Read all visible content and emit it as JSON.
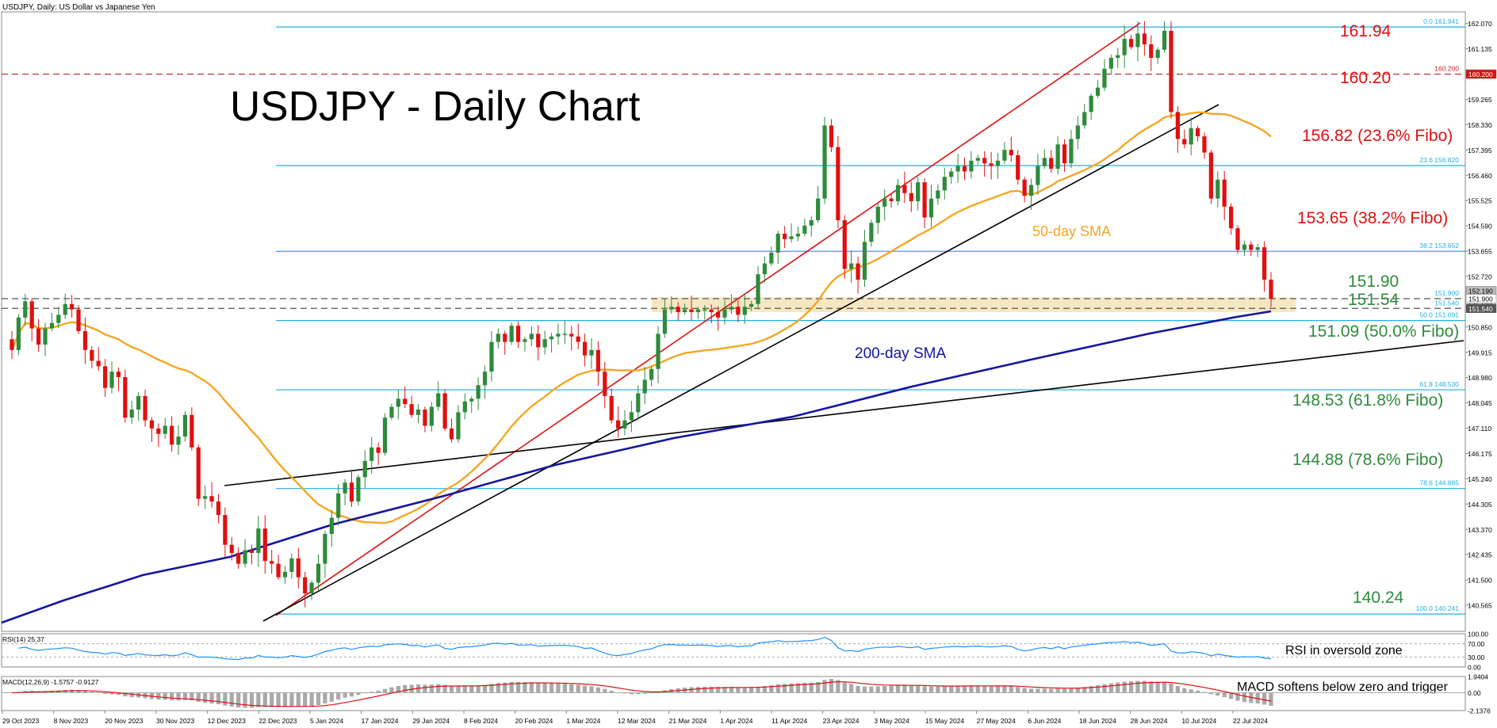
{
  "chart_data": {
    "type": "candlestick",
    "symbol_header": "USDJPY, Daily:  US Dollar vs Japanese Yen",
    "title": "USDJPY - Daily Chart",
    "price_axis": {
      "ylim": [
        139.6,
        162.5
      ],
      "ticks": [
        "162.070",
        "161.135",
        "160.200",
        "159.265",
        "158.330",
        "157.395",
        "156.460",
        "155.525",
        "154.590",
        "153.655",
        "152.720",
        "151.785",
        "150.850",
        "149.915",
        "148.980",
        "148.045",
        "147.110",
        "146.175",
        "145.240",
        "144.305",
        "143.370",
        "142.435",
        "141.500",
        "140.565"
      ]
    },
    "date_labels": [
      "29 Oct 2023",
      "8 Nov 2023",
      "20 Nov 2023",
      "30 Nov 2023",
      "12 Dec 2023",
      "22 Dec 2023",
      "5 Jan 2024",
      "17 Jan 2024",
      "29 Jan 2024",
      "8 Feb 2024",
      "20 Feb 2024",
      "1 Mar 2024",
      "12 Mar 2024",
      "21 Mar 2024",
      "1 Apr 2024",
      "11 Apr 2024",
      "23 Apr 2024",
      "3 May 2024",
      "15 May 2024",
      "27 May 2024",
      "6 Jun 2024",
      "18 Jun 2024",
      "28 Jun 2024",
      "10 Jul 2024",
      "22 Jul 2024"
    ],
    "candles_close": [
      150.0,
      151.2,
      151.8,
      150.8,
      150.2,
      150.8,
      151.0,
      151.3,
      151.7,
      151.5,
      150.7,
      150.0,
      149.6,
      149.4,
      148.6,
      149.2,
      149.0,
      147.5,
      147.8,
      148.3,
      147.4,
      147.1,
      146.9,
      147.2,
      146.5,
      146.8,
      147.6,
      146.4,
      144.5,
      144.6,
      144.4,
      143.9,
      142.8,
      142.5,
      142.1,
      142.6,
      142.5,
      143.4,
      142.2,
      142.1,
      141.6,
      141.8,
      142.3,
      141.6,
      141.0,
      141.4,
      142.1,
      143.2,
      143.8,
      144.7,
      145.1,
      144.4,
      145.3,
      145.9,
      146.4,
      146.2,
      147.5,
      147.9,
      148.2,
      148.0,
      147.6,
      147.8,
      147.2,
      147.9,
      148.4,
      147.1,
      146.7,
      147.7,
      148.1,
      148.2,
      148.7,
      149.2,
      150.3,
      150.6,
      150.3,
      150.9,
      150.3,
      150.4,
      150.6,
      150.1,
      150.4,
      150.5,
      150.6,
      150.6,
      150.5,
      150.3,
      149.8,
      150.0,
      149.2,
      148.3,
      147.4,
      147.1,
      147.4,
      147.7,
      148.4,
      148.9,
      149.3,
      150.6,
      151.5,
      151.6,
      151.4,
      151.5,
      151.4,
      151.5,
      151.5,
      151.4,
      151.2,
      151.5,
      151.6,
      151.3,
      151.6,
      151.7,
      152.8,
      153.2,
      153.6,
      154.3,
      154.1,
      154.2,
      154.3,
      154.6,
      154.8,
      155.6,
      158.3,
      157.5,
      154.8,
      153.0,
      153.2,
      152.6,
      154.0,
      154.7,
      155.3,
      155.6,
      155.5,
      156.1,
      155.8,
      155.5,
      156.2,
      154.9,
      155.6,
      155.9,
      156.4,
      156.6,
      156.8,
      156.6,
      157.0,
      157.1,
      156.9,
      156.8,
      157.0,
      157.4,
      157.2,
      156.3,
      155.7,
      156.1,
      156.8,
      157.1,
      156.7,
      157.6,
      156.9,
      157.8,
      158.3,
      158.8,
      159.4,
      159.7,
      160.4,
      160.8,
      160.9,
      161.5,
      161.2,
      161.7,
      161.3,
      160.8,
      161.1,
      161.8,
      158.8,
      157.8,
      157.6,
      158.2,
      157.9,
      157.3,
      155.6,
      156.3,
      155.3,
      154.5,
      153.7,
      153.9,
      153.7,
      153.8,
      152.6,
      151.9
    ],
    "levels": [
      {
        "label": "161.94",
        "fibo_tag": "0.0 161.941",
        "value": 161.94
      },
      {
        "label": "160.20",
        "fibo_tag": "160.200",
        "value": 160.2
      },
      {
        "label": "156.82 (23.6% Fibo)",
        "fibo_tag": "23.6 156.820",
        "value": 156.82
      },
      {
        "label": "153.65 (38.2% Fibo)",
        "fibo_tag": "38.2 153.652",
        "value": 153.65
      },
      {
        "label": "151.90",
        "fibo_tag": "151.900",
        "value": 151.9
      },
      {
        "label": "151.54",
        "fibo_tag": "151.540",
        "value": 151.54
      },
      {
        "label": "151.09 (50.0% Fibo)",
        "fibo_tag": "50.0 151.091",
        "value": 151.09
      },
      {
        "label": "148.53 (61.8% Fibo)",
        "fibo_tag": "61.8 148.530",
        "value": 148.53
      },
      {
        "label": "144.88 (78.6% Fibo)",
        "fibo_tag": "78.6 144.885",
        "value": 144.88
      },
      {
        "label": "140.24",
        "fibo_tag": "100.0 140.241",
        "value": 140.24
      }
    ],
    "current_price_tag": "152.190",
    "sma50_label": "50-day SMA",
    "sma200_label": "200-day SMA",
    "rsi": {
      "header": "RSI(14) 25.37",
      "ticks": [
        "100.00",
        "70.00",
        "30.00",
        "0.00"
      ],
      "annotation": "RSI in oversold zone"
    },
    "macd": {
      "header": "MACD(12,26,9) -1.5757 -0.9127",
      "ticks": [
        "1.9404",
        "0.00",
        "-2.1376"
      ],
      "annotation": "MACD softens below zero and trigger"
    },
    "colors": {
      "bull": "#2e8b3c",
      "bear": "#e01010",
      "level": "#22aee8",
      "sma50": "#f5a623",
      "sma200": "#1414a0",
      "zone": "#f5e3b8",
      "fibo_red": "#e01010",
      "fibo_green": "#2e8b3c"
    }
  }
}
